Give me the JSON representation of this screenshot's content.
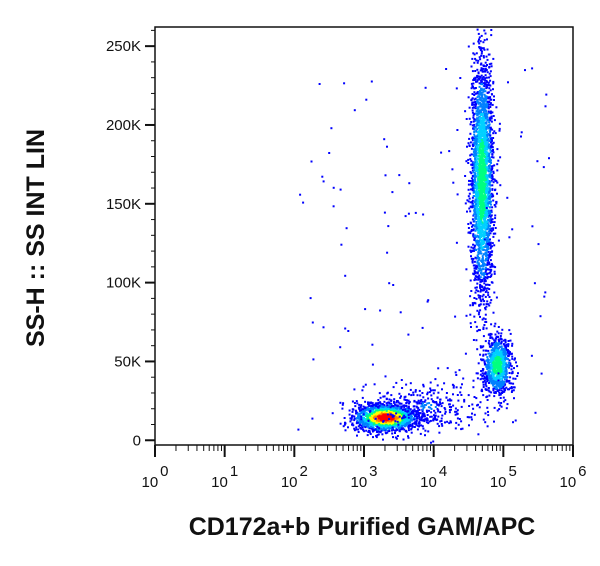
{
  "chart_data": {
    "type": "scatter",
    "plot_style": "density dot plot (flow cytometry)",
    "xlabel": "CD172a+b Purified GAM/APC",
    "ylabel": "SS-H :: SS INT LIN",
    "x_scale": "log",
    "y_scale": "linear",
    "xlim": [
      1,
      1000000
    ],
    "ylim": [
      -3000,
      262144
    ],
    "x_ticks": [
      {
        "base": "10",
        "exp": "0",
        "value": 1
      },
      {
        "base": "10",
        "exp": "1",
        "value": 10
      },
      {
        "base": "10",
        "exp": "2",
        "value": 100
      },
      {
        "base": "10",
        "exp": "3",
        "value": 1000
      },
      {
        "base": "10",
        "exp": "4",
        "value": 10000
      },
      {
        "base": "10",
        "exp": "5",
        "value": 100000
      },
      {
        "base": "10",
        "exp": "6",
        "value": 1000000
      }
    ],
    "y_ticks": [
      {
        "label": "0",
        "value": 0
      },
      {
        "label": "50K",
        "value": 50000
      },
      {
        "label": "100K",
        "value": 100000
      },
      {
        "label": "150K",
        "value": 150000
      },
      {
        "label": "200K",
        "value": 200000
      },
      {
        "label": "250K",
        "value": 250000
      }
    ],
    "density_colors": [
      "#0000ff",
      "#0080ff",
      "#00d0ff",
      "#00ff80",
      "#ffff00",
      "#ff8000",
      "#ff0000"
    ],
    "populations": [
      {
        "x_center": 2000,
        "y_center": 15000,
        "x_spread_decades": 0.22,
        "y_sd": 4000,
        "count": 1800,
        "peak": 1.0
      },
      {
        "x_center": 48000,
        "y_center": 165000,
        "x_spread_decades": 0.08,
        "y_sd": 38000,
        "count": 2600,
        "peak": 0.55
      },
      {
        "x_center": 80000,
        "y_center": 48000,
        "x_spread_decades": 0.1,
        "y_sd": 9000,
        "count": 900,
        "peak": 0.55
      },
      {
        "x_center": 8000,
        "y_center": 22000,
        "x_spread_decades": 0.45,
        "y_sd": 8000,
        "count": 350,
        "peak": 0.15
      }
    ]
  }
}
